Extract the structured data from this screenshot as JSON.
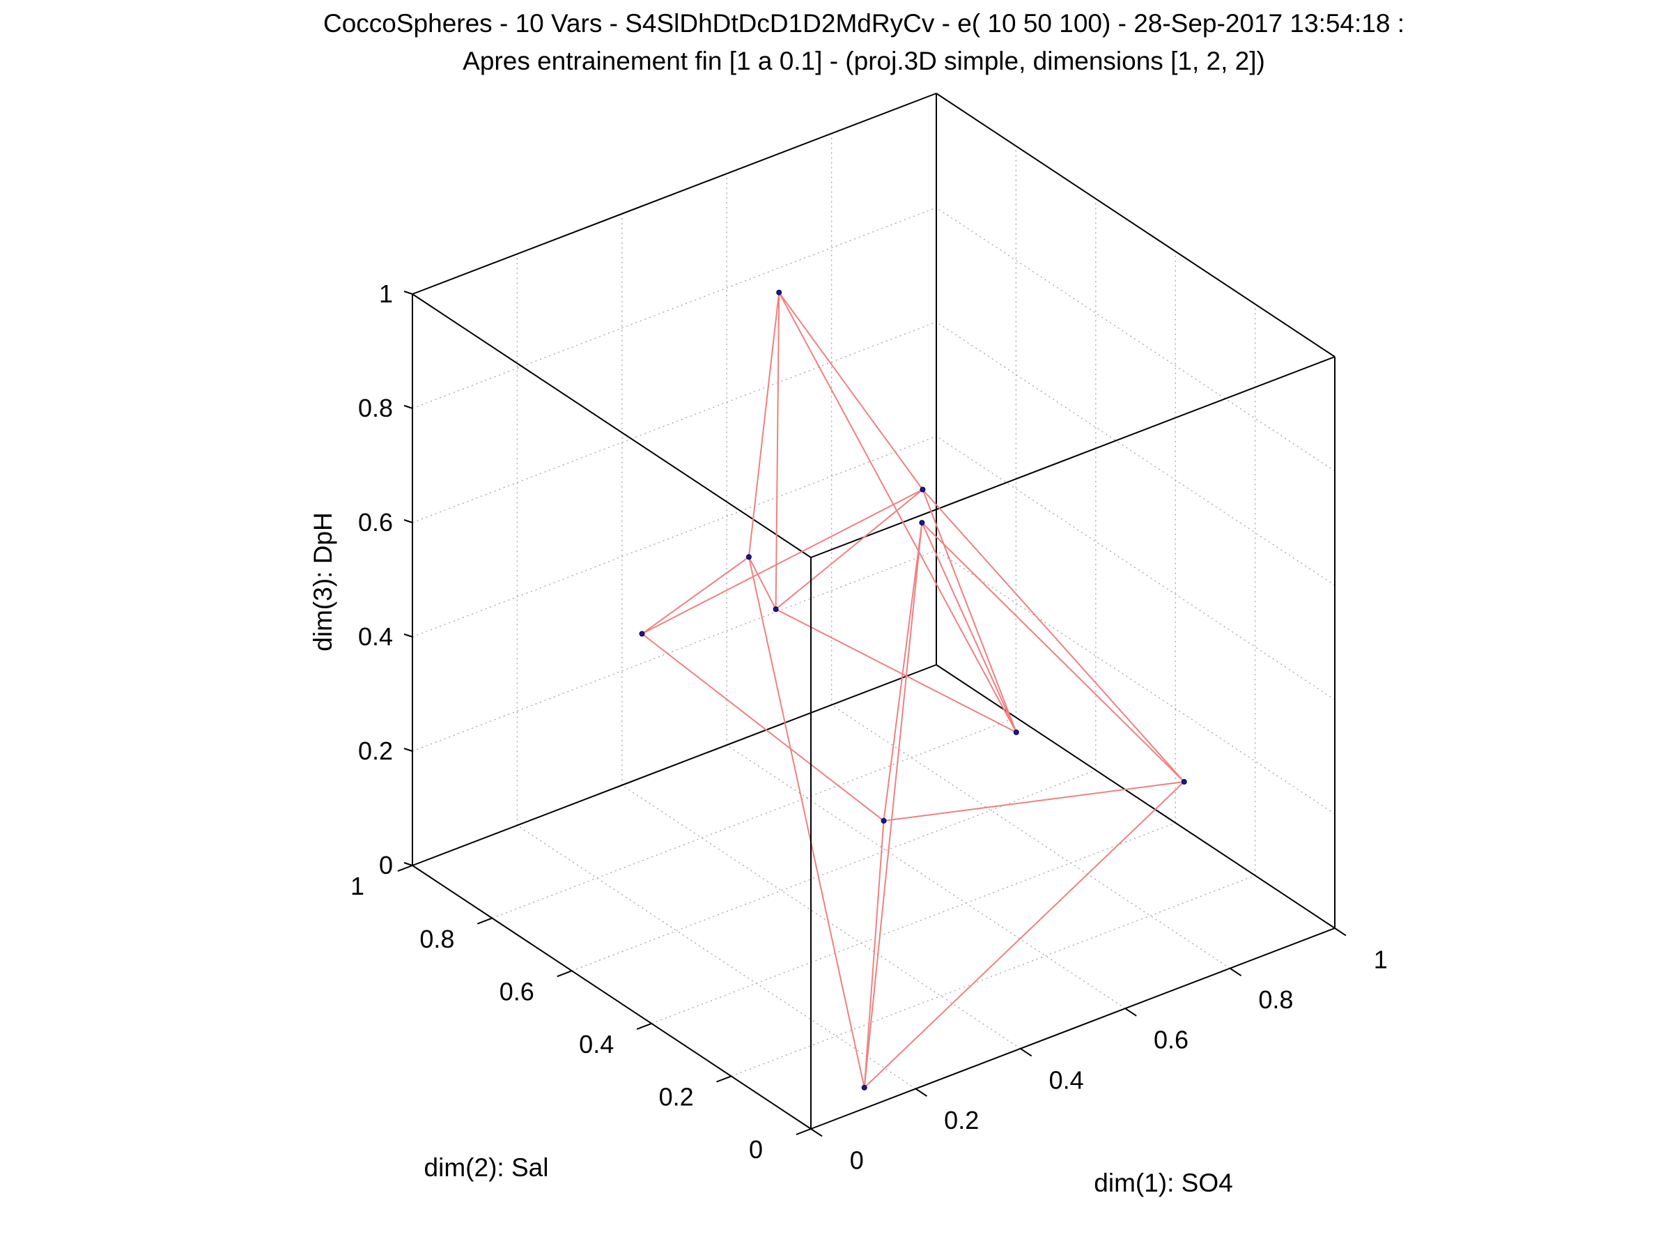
{
  "figure": {
    "title_line1": "CoccoSpheres - 10 Vars - S4SlDhDtDcD1D2MdRyCv - e( 10 50 100) - 28-Sep-2017 13:54:18 :",
    "title_line2": "Apres entrainement fin [1 a 0.1] - (proj.3D simple, dimensions [1, 2, 2])"
  },
  "chart_data": {
    "type": "scatter3d",
    "title": "CoccoSpheres - 10 Vars - S4SlDhDtDcD1D2MdRyCv - e( 10 50 100) - 28-Sep-2017 13:54:18 : Apres entrainement fin [1 a 0.1] - (proj.3D simple, dimensions [1, 2, 2])",
    "xlabel": "dim(1): SO4",
    "ylabel": "dim(2): Sal",
    "zlabel": "dim(3): DpH",
    "xlim": [
      0,
      1
    ],
    "ylim": [
      0,
      1
    ],
    "zlim": [
      0,
      1
    ],
    "x_ticks": [
      "0",
      "0.2",
      "0.4",
      "0.6",
      "0.8",
      "1"
    ],
    "y_ticks": [
      "0",
      "0.2",
      "0.4",
      "0.6",
      "0.8",
      "1"
    ],
    "z_ticks": [
      "0",
      "0.2",
      "0.4",
      "0.6",
      "0.8",
      "1"
    ],
    "grid": true,
    "line_color": "#f08080",
    "marker_color": "#1a1a8c",
    "points": [
      {
        "x": 0.14,
        "y": 0.05,
        "z": 0.0
      },
      {
        "x": 0.25,
        "y": 0.05,
        "z": 0.95
      },
      {
        "x": 0.54,
        "y": 0.79,
        "z": 0.91
      },
      {
        "x": 0.49,
        "y": 0.8,
        "z": 0.46
      },
      {
        "x": 0.43,
        "y": 0.05,
        "z": 0.52
      },
      {
        "x": 0.72,
        "y": 0.01,
        "z": 0.35
      },
      {
        "x": 0.39,
        "y": 0.33,
        "z": 0.25
      },
      {
        "x": 0.26,
        "y": 0.43,
        "z": 0.62
      },
      {
        "x": 0.51,
        "y": 0.39,
        "z": 0.76
      },
      {
        "x": 0.21,
        "y": 0.7,
        "z": 0.47
      }
    ],
    "edges": [
      [
        0,
        1
      ],
      [
        0,
        5
      ],
      [
        0,
        6
      ],
      [
        0,
        3
      ],
      [
        1,
        5
      ],
      [
        1,
        6
      ],
      [
        2,
        3
      ],
      [
        2,
        7
      ],
      [
        2,
        8
      ],
      [
        2,
        4
      ],
      [
        3,
        9
      ],
      [
        3,
        7
      ],
      [
        4,
        7
      ],
      [
        4,
        8
      ],
      [
        5,
        6
      ],
      [
        6,
        9
      ],
      [
        7,
        8
      ],
      [
        8,
        9
      ],
      [
        1,
        4
      ],
      [
        5,
        8
      ]
    ]
  }
}
